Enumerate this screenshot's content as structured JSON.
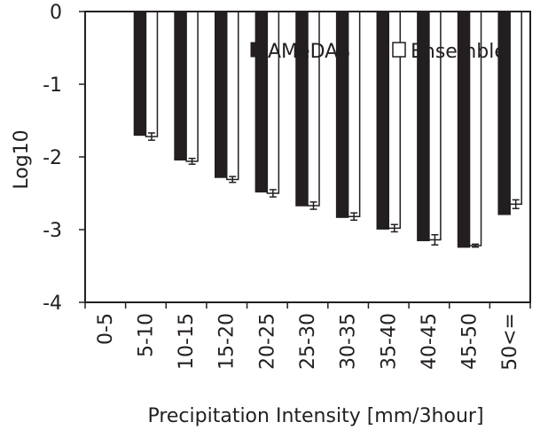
{
  "chart_data": {
    "type": "bar",
    "title": "",
    "xlabel": "Precipitation Intensity [mm/3hour]",
    "ylabel": "Log10",
    "ylim": [
      -4,
      0
    ],
    "yticks": [
      "0",
      "-1",
      "-2",
      "-3",
      "-4"
    ],
    "grid": false,
    "legend_position": "top-right",
    "categories": [
      "0-5",
      "5-10",
      "10-15",
      "15-20",
      "20-25",
      "25-30",
      "30-35",
      "35-40",
      "40-45",
      "45-50",
      "50<="
    ],
    "series": [
      {
        "name": "AMeDAS",
        "color": "#231f20",
        "fill": "solid",
        "values": [
          0,
          -1.7,
          -2.04,
          -2.28,
          -2.48,
          -2.67,
          -2.83,
          -2.99,
          -3.15,
          -3.24,
          -2.79
        ]
      },
      {
        "name": "Ensemble",
        "color": "#ffffff",
        "fill": "open",
        "values": [
          0,
          -1.72,
          -2.06,
          -2.31,
          -2.5,
          -2.67,
          -2.82,
          -2.98,
          -3.14,
          -3.22,
          -2.65
        ],
        "error": [
          0,
          0.05,
          0.04,
          0.04,
          0.05,
          0.05,
          0.05,
          0.05,
          0.07,
          0.02,
          0.06
        ]
      }
    ]
  }
}
